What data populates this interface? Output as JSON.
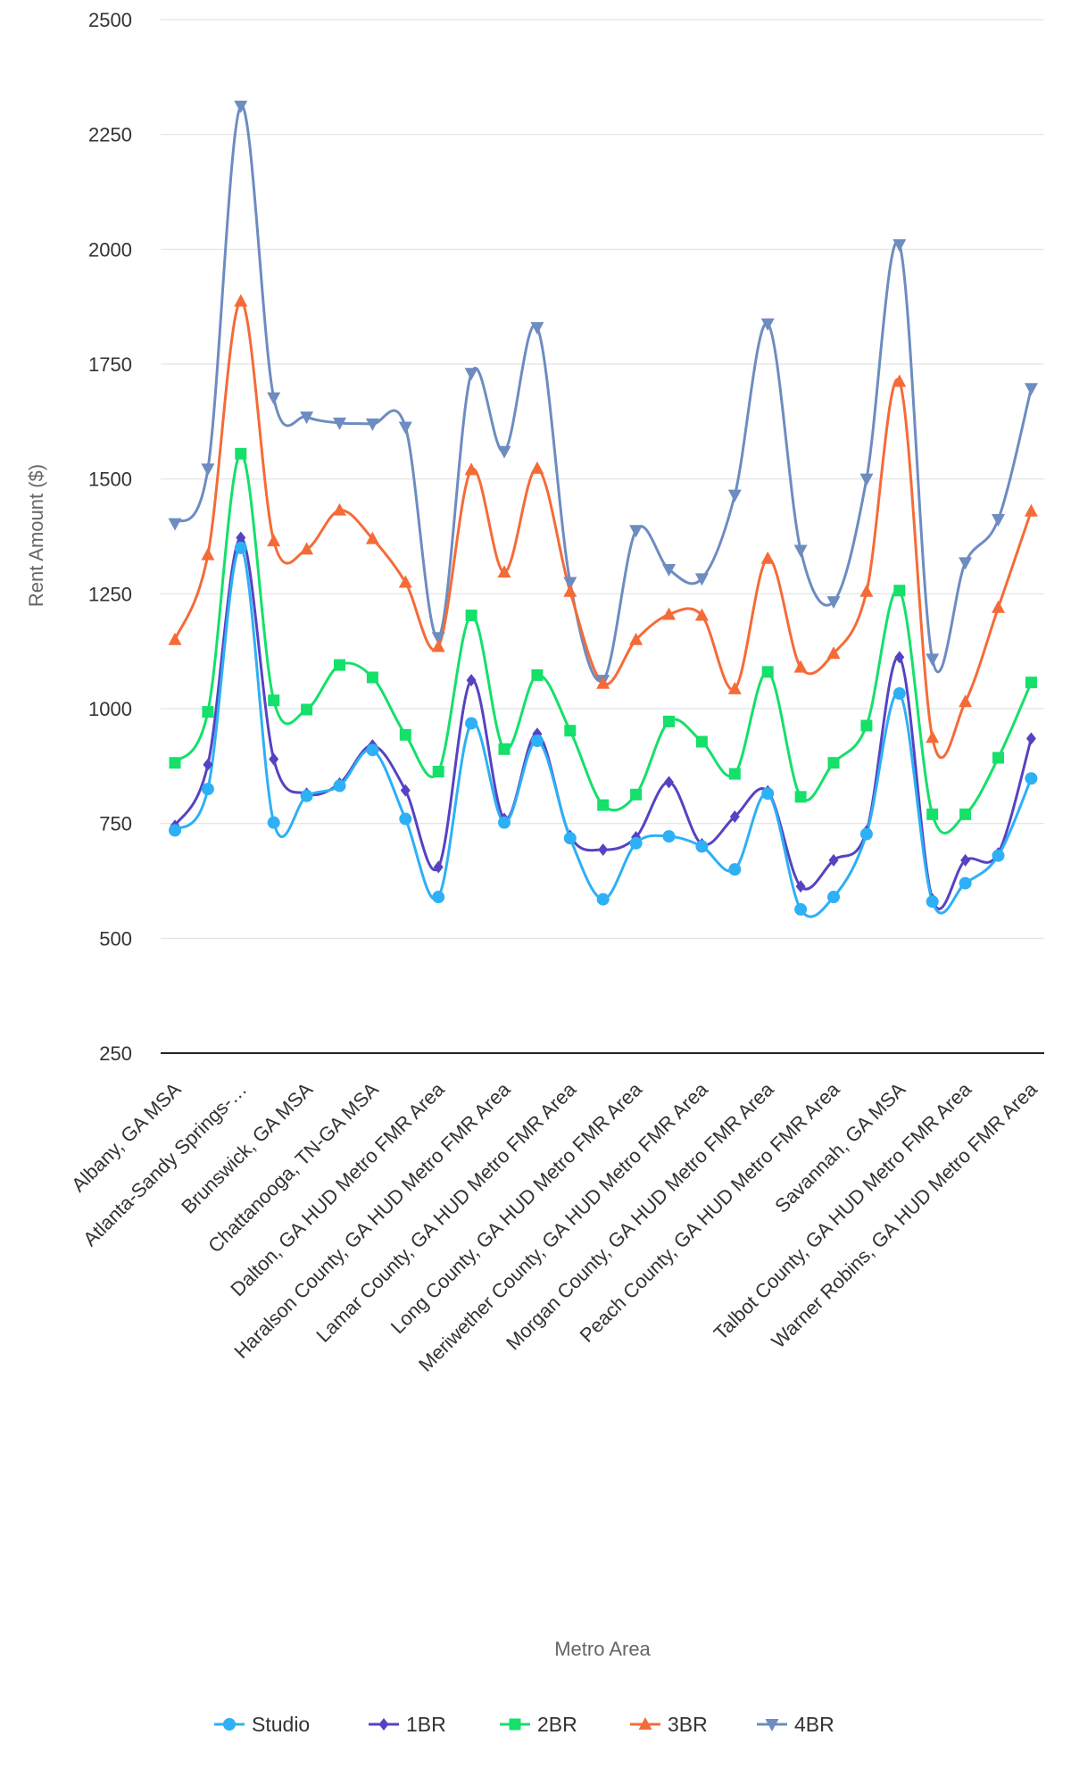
{
  "chart_data": {
    "type": "line",
    "title": "",
    "xlabel": "Metro Area",
    "ylabel": "Rent Amount ($)",
    "ylim": [
      250,
      2500
    ],
    "yticks": [
      250,
      500,
      750,
      1000,
      1250,
      1500,
      1750,
      2000,
      2250,
      2500
    ],
    "grid": true,
    "legend_position": "bottom",
    "categories": [
      "Albany, GA MSA",
      "",
      "Atlanta-Sandy Springs-…",
      "",
      "Brunswick, GA MSA",
      "",
      "Chattanooga, TN-GA MSA",
      "",
      "Dalton, GA HUD Metro FMR Area",
      "",
      "Haralson County, GA HUD Metro FMR Area",
      "",
      "Lamar County, GA HUD Metro FMR Area",
      "",
      "Long County, GA HUD Metro FMR Area",
      "",
      "Meriwether County, GA HUD Metro FMR Area",
      "",
      "Morgan County, GA HUD Metro FMR Area",
      "",
      "Peach County, GA HUD Metro FMR Area",
      "",
      "Savannah, GA MSA",
      "",
      "Talbot County, GA HUD Metro FMR Area",
      "",
      "Warner Robins, GA HUD Metro FMR Area"
    ],
    "series": [
      {
        "name": "Studio",
        "color": "#2db0f5",
        "marker": "circle",
        "values": [
          735,
          825,
          1350,
          752,
          810,
          832,
          910,
          760,
          590,
          968,
          752,
          930,
          718,
          585,
          707,
          722,
          700,
          650,
          815,
          563,
          590,
          727,
          1033,
          580,
          620,
          680,
          848
        ]
      },
      {
        "name": "1BR",
        "color": "#5543c2",
        "marker": "diamond",
        "values": [
          745,
          878,
          1372,
          890,
          815,
          837,
          920,
          822,
          655,
          1062,
          760,
          945,
          723,
          693,
          720,
          840,
          705,
          765,
          820,
          613,
          670,
          733,
          1112,
          585,
          670,
          685,
          935
        ]
      },
      {
        "name": "2BR",
        "color": "#14e06a",
        "marker": "square",
        "values": [
          882,
          993,
          1555,
          1018,
          998,
          1095,
          1068,
          943,
          863,
          1203,
          912,
          1073,
          952,
          790,
          813,
          972,
          928,
          858,
          1080,
          808,
          882,
          963,
          1257,
          770,
          770,
          893,
          1057
        ]
      },
      {
        "name": "3BR",
        "color": "#f56b38",
        "marker": "triangle",
        "values": [
          1150,
          1335,
          1887,
          1365,
          1347,
          1432,
          1370,
          1275,
          1135,
          1520,
          1297,
          1523,
          1255,
          1055,
          1150,
          1205,
          1203,
          1043,
          1327,
          1090,
          1120,
          1255,
          1712,
          937,
          1015,
          1220,
          1430
        ]
      },
      {
        "name": "4BR",
        "color": "#6d8cc0",
        "marker": "triangle-down",
        "values": [
          1403,
          1522,
          2312,
          1677,
          1635,
          1622,
          1620,
          1613,
          1155,
          1730,
          1560,
          1830,
          1275,
          1062,
          1388,
          1303,
          1283,
          1465,
          1838,
          1345,
          1233,
          1500,
          2010,
          1108,
          1318,
          1412,
          1697
        ]
      }
    ]
  }
}
